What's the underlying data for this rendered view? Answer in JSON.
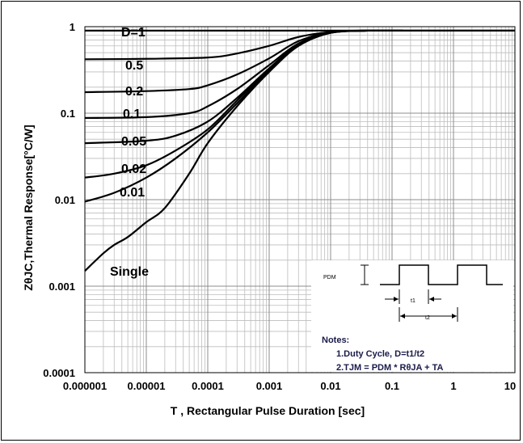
{
  "chart_data": {
    "type": "line",
    "xlabel": "T , Rectangular Pulse Duration [sec]",
    "ylabel": "ZθJC,Thermal Response[°C/W]",
    "x_scale": "log",
    "y_scale": "log",
    "xlim": [
      1e-06,
      10
    ],
    "ylim": [
      0.0001,
      1
    ],
    "grid": true,
    "x_ticks": [
      "0.000001",
      "0.00001",
      "0.0001",
      "0.001",
      "0.01",
      "0.1",
      "1",
      "10"
    ],
    "y_ticks": [
      "1",
      "0.1",
      "0.01",
      "0.001",
      "0.0001"
    ],
    "series": [
      {
        "name": "D=1",
        "x": [
          1e-06,
          10
        ],
        "y": [
          0.9,
          0.9
        ]
      },
      {
        "name": "0.5",
        "x": [
          1e-06,
          1e-05,
          0.0001,
          0.0003,
          0.001,
          0.003,
          0.01,
          0.03
        ],
        "y": [
          0.42,
          0.425,
          0.44,
          0.49,
          0.6,
          0.76,
          0.87,
          0.9
        ]
      },
      {
        "name": "0.2",
        "x": [
          1e-06,
          1e-05,
          5e-05,
          0.0001,
          0.0003,
          0.001,
          0.003,
          0.01,
          0.04
        ],
        "y": [
          0.175,
          0.18,
          0.19,
          0.21,
          0.28,
          0.43,
          0.68,
          0.86,
          0.9
        ]
      },
      {
        "name": "0.1",
        "x": [
          1e-06,
          1e-05,
          5e-05,
          0.0001,
          0.0003,
          0.001,
          0.003,
          0.01,
          0.04
        ],
        "y": [
          0.088,
          0.09,
          0.1,
          0.12,
          0.19,
          0.36,
          0.64,
          0.85,
          0.9
        ]
      },
      {
        "name": "0.05",
        "x": [
          1e-06,
          1e-05,
          3e-05,
          0.0001,
          0.0003,
          0.001,
          0.003,
          0.01,
          0.04
        ],
        "y": [
          0.045,
          0.048,
          0.055,
          0.08,
          0.15,
          0.33,
          0.62,
          0.85,
          0.9
        ]
      },
      {
        "name": "0.02",
        "x": [
          1e-06,
          3e-06,
          1e-05,
          3e-05,
          0.0001,
          0.0003,
          0.001,
          0.003,
          0.01,
          0.04
        ],
        "y": [
          0.018,
          0.02,
          0.025,
          0.037,
          0.065,
          0.14,
          0.32,
          0.61,
          0.85,
          0.9
        ]
      },
      {
        "name": "0.01",
        "x": [
          1e-06,
          3e-06,
          1e-05,
          3e-05,
          0.0001,
          0.0003,
          0.001,
          0.003,
          0.01,
          0.04
        ],
        "y": [
          0.0095,
          0.012,
          0.018,
          0.03,
          0.06,
          0.13,
          0.31,
          0.6,
          0.85,
          0.9
        ]
      },
      {
        "name": "Single",
        "x": [
          1e-06,
          2e-06,
          3e-06,
          5e-06,
          1e-05,
          2e-05,
          5e-05,
          0.0001,
          0.0003,
          0.001,
          0.003,
          0.01,
          0.04
        ],
        "y": [
          0.0015,
          0.0024,
          0.003,
          0.0037,
          0.0055,
          0.008,
          0.02,
          0.045,
          0.12,
          0.3,
          0.6,
          0.85,
          0.9
        ]
      }
    ],
    "notes": {
      "heading": "Notes:",
      "line1": "1.Duty  Cycle, D=t1/t2",
      "line2": "2.TJM = PDM * RθJA + TA",
      "pdm_label": "PDM",
      "t1_label": "t1",
      "t2_label": "t2"
    }
  }
}
